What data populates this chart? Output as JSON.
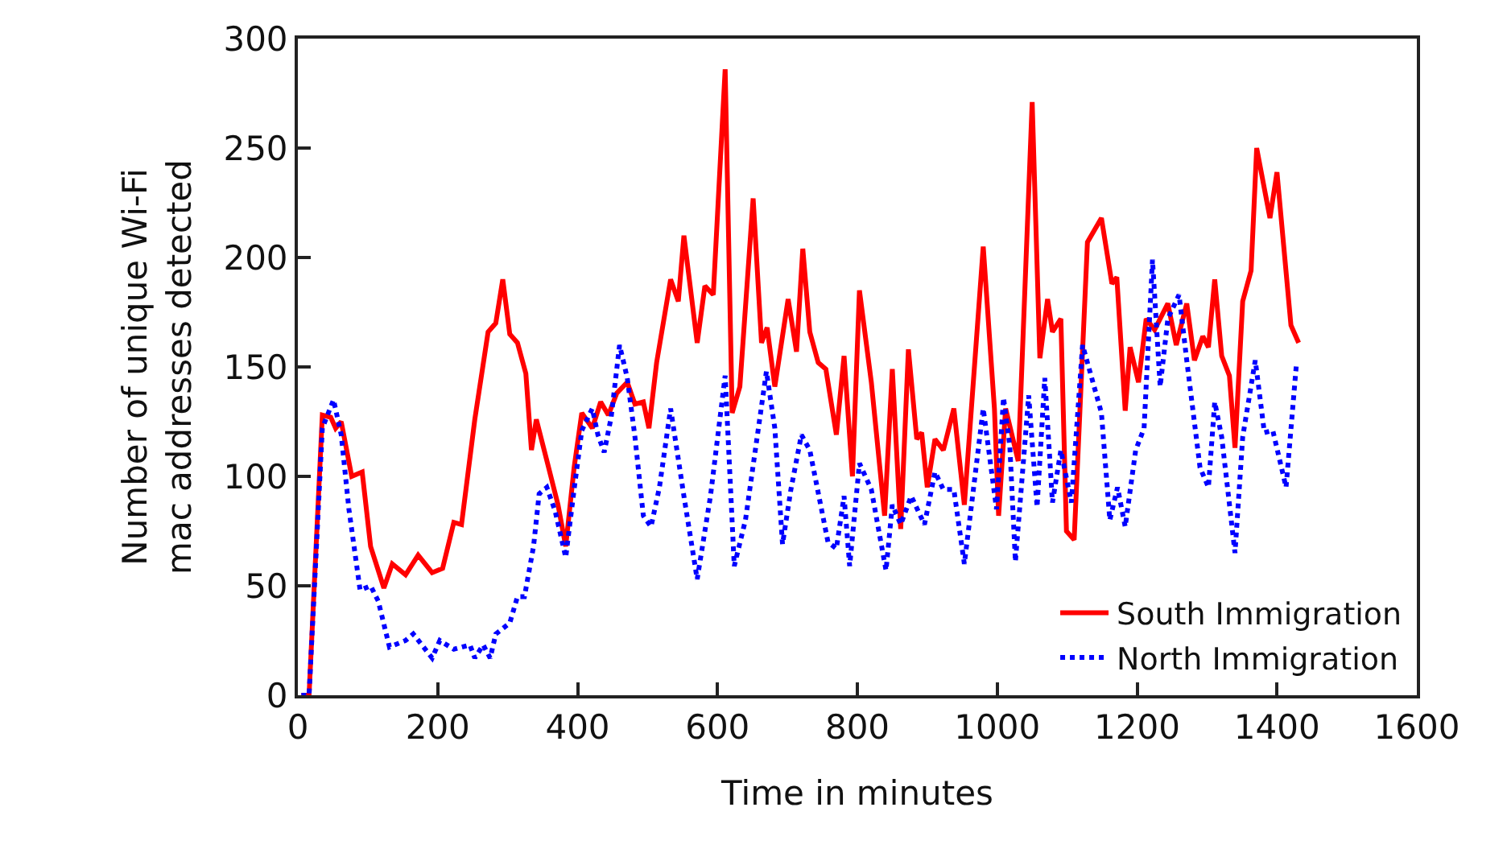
{
  "chart_data": {
    "type": "line",
    "xlabel": "Time in minutes",
    "ylabel": "Number of unique Wi-Fi\nmac addresses detected",
    "xlim": [
      0,
      1600
    ],
    "xticks": [
      0,
      200,
      400,
      600,
      800,
      1000,
      1200,
      1400,
      1600
    ],
    "ylim": [
      0,
      300
    ],
    "yticks": [
      0,
      50,
      100,
      150,
      200,
      250,
      300
    ],
    "legend": "bottom right",
    "marker": "none",
    "series": [
      {
        "name": "South Immigration",
        "color": "#ff0000",
        "line_style": "solid",
        "x": [
          5,
          16,
          35,
          47,
          54,
          62,
          77,
          92,
          104,
          123,
          135,
          154,
          172,
          192,
          207,
          223,
          234,
          253,
          272,
          283,
          293,
          303,
          314,
          326,
          334,
          341,
          357,
          372,
          383,
          395,
          406,
          421,
          433,
          444,
          456,
          471,
          482,
          494,
          502,
          513,
          533,
          544,
          552,
          571,
          582,
          594,
          611,
          621,
          632,
          651,
          663,
          671,
          682,
          701,
          713,
          722,
          732,
          744,
          755,
          770,
          781,
          793,
          803,
          820,
          839,
          850,
          862,
          873,
          885,
          892,
          900,
          911,
          923,
          938,
          953,
          980,
          996,
          1002,
          1012,
          1030,
          1050,
          1061,
          1072,
          1079,
          1091,
          1099,
          1110,
          1129,
          1149,
          1164,
          1171,
          1183,
          1190,
          1202,
          1213,
          1225,
          1244,
          1256,
          1271,
          1282,
          1294,
          1302,
          1311,
          1321,
          1332,
          1340,
          1351,
          1363,
          1371,
          1390,
          1400,
          1420,
          1431
        ],
        "values": [
          0,
          0,
          128,
          127,
          122,
          125,
          100,
          102,
          68,
          49,
          60,
          55,
          64,
          56,
          58,
          79,
          78,
          126,
          166,
          170,
          190,
          165,
          161,
          147,
          112,
          126,
          106,
          87,
          68,
          104,
          129,
          122,
          134,
          128,
          138,
          143,
          133,
          134,
          122,
          152,
          190,
          180,
          210,
          161,
          187,
          183,
          286,
          129,
          141,
          227,
          161,
          168,
          141,
          181,
          157,
          204,
          166,
          152,
          149,
          119,
          155,
          100,
          185,
          143,
          82,
          149,
          76,
          158,
          117,
          120,
          95,
          117,
          112,
          131,
          87,
          205,
          131,
          82,
          131,
          107,
          271,
          154,
          181,
          166,
          172,
          75,
          71,
          207,
          218,
          188,
          191,
          130,
          159,
          143,
          172,
          167,
          179,
          160,
          179,
          153,
          164,
          159,
          190,
          155,
          146,
          113,
          180,
          194,
          250,
          218,
          239,
          169,
          161
        ]
      },
      {
        "name": "North Immigration",
        "color": "#0000ff",
        "line_style": "dotted",
        "x": [
          5,
          16,
          35,
          51,
          62,
          73,
          89,
          104,
          115,
          131,
          154,
          165,
          192,
          203,
          223,
          246,
          253,
          265,
          275,
          283,
          303,
          314,
          324,
          337,
          345,
          356,
          368,
          383,
          395,
          406,
          421,
          429,
          438,
          448,
          460,
          471,
          482,
          494,
          505,
          517,
          533,
          552,
          571,
          590,
          611,
          624,
          640,
          670,
          682,
          693,
          705,
          720,
          732,
          758,
          770,
          781,
          789,
          803,
          820,
          841,
          850,
          862,
          877,
          896,
          911,
          923,
          938,
          953,
          980,
          999,
          1009,
          1018,
          1026,
          1045,
          1057,
          1068,
          1079,
          1091,
          1106,
          1122,
          1149,
          1161,
          1172,
          1183,
          1198,
          1210,
          1222,
          1233,
          1244,
          1260,
          1271,
          1290,
          1302,
          1311,
          1321,
          1340,
          1351,
          1369,
          1382,
          1394,
          1413,
          1428
        ],
        "values": [
          0,
          0,
          122,
          135,
          119,
          85,
          48,
          50,
          43,
          22,
          25,
          28,
          17,
          25,
          21,
          23,
          17,
          23,
          17,
          28,
          33,
          45,
          45,
          68,
          92,
          95,
          84,
          63,
          94,
          121,
          131,
          119,
          111,
          127,
          160,
          145,
          118,
          82,
          77,
          95,
          131,
          91,
          53,
          91,
          146,
          59,
          80,
          148,
          122,
          69,
          94,
          119,
          112,
          70,
          67,
          91,
          59,
          106,
          94,
          57,
          87,
          78,
          91,
          78,
          102,
          94,
          94,
          60,
          131,
          85,
          136,
          114,
          61,
          137,
          86,
          145,
          88,
          112,
          88,
          160,
          129,
          80,
          95,
          77,
          112,
          122,
          199,
          141,
          172,
          183,
          153,
          104,
          95,
          134,
          118,
          65,
          118,
          153,
          120,
          121,
          95,
          152
        ]
      }
    ]
  }
}
